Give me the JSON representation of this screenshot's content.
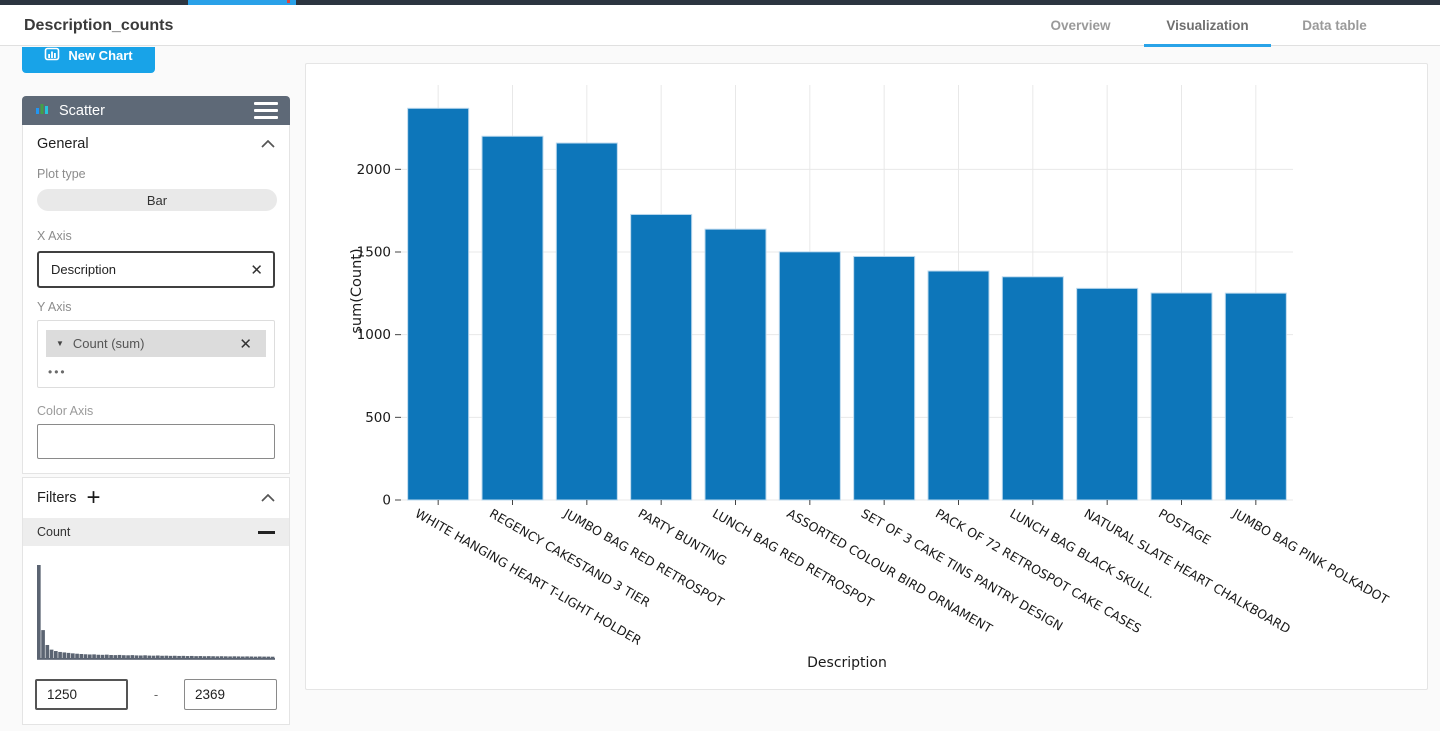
{
  "header": {
    "title": "Description_counts",
    "tabs": [
      {
        "label": "Overview",
        "active": false
      },
      {
        "label": "Visualization",
        "active": true
      },
      {
        "label": "Data table",
        "active": false
      }
    ]
  },
  "toolbar": {
    "new_chart_label": "New Chart"
  },
  "panel": {
    "chart_name": "Scatter",
    "general": {
      "heading": "General",
      "plot_type_label": "Plot type",
      "plot_type_value": "Bar",
      "x_axis_label": "X Axis",
      "x_axis_value": "Description",
      "y_axis_label": "Y Axis",
      "y_axis_value": "Count (sum)",
      "more_options": "•••",
      "color_axis_label": "Color Axis",
      "color_axis_value": ""
    },
    "filters": {
      "heading": "Filters",
      "add_symbol": "+",
      "filter_name": "Count",
      "range_min": "1250",
      "range_dash": "-",
      "range_max": "2369"
    }
  },
  "colors": {
    "bar_blue": "#0d76ba",
    "bar_edge": "#bcd9ee",
    "accent_blue": "#18a3e8",
    "tab_underline": "#29a3e8",
    "panel_header_bg": "#5e6977",
    "histogram_gray": "#5b6472",
    "gridline": "#e8e8e8"
  },
  "chart_data": {
    "type": "bar",
    "title": "",
    "xlabel": "Description",
    "ylabel": "sum(Count)",
    "categories": [
      "WHITE HANGING HEART T-LIGHT HOLDER",
      "REGENCY CAKESTAND 3 TIER",
      "JUMBO BAG RED RETROSPOT",
      "PARTY BUNTING",
      "LUNCH BAG RED RETROSPOT",
      "ASSORTED COLOUR BIRD ORNAMENT",
      "SET OF 3 CAKE TINS PANTRY DESIGN",
      "PACK OF 72 RETROSPOT CAKE CASES",
      "LUNCH BAG BLACK SKULL.",
      "NATURAL SLATE HEART CHALKBOARD",
      "POSTAGE",
      "JUMBO BAG PINK POLKADOT"
    ],
    "values": [
      2369,
      2200,
      2159,
      1727,
      1638,
      1501,
      1473,
      1385,
      1350,
      1280,
      1252,
      1251
    ],
    "yticks": [
      0,
      500,
      1000,
      1500,
      2000
    ],
    "ylim": [
      0,
      2510
    ],
    "grid": true,
    "legend": "none",
    "tick_label_rotation_deg": 30
  },
  "filter_histogram": {
    "type": "histogram",
    "ylim": [
      0,
      100
    ],
    "bins": [
      100,
      30,
      14,
      9,
      7.5,
      6.5,
      6,
      5.5,
      5,
      4.6,
      4.3,
      4,
      3.8,
      3.9,
      3.5,
      3.4,
      3.6,
      3.2,
      3.1,
      3.3,
      3,
      2.9,
      3.1,
      2.8,
      2.7,
      2.9,
      2.6,
      2.5,
      2.7,
      2.4,
      2.5,
      2.3,
      2.4,
      2.2,
      2.3,
      2.1,
      2.2,
      2.0,
      2.1,
      1.9,
      2.0,
      1.9,
      1.8,
      1.9,
      1.8,
      1.7,
      1.8,
      1.7,
      1.6,
      1.7,
      1.6,
      1.5,
      1.6,
      1.5,
      1.5,
      1.4
    ]
  }
}
